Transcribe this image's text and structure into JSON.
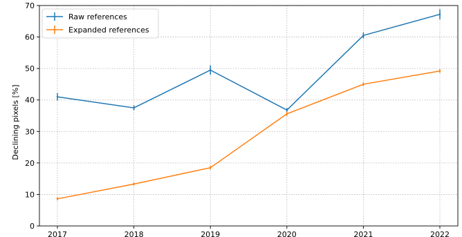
{
  "chart_data": {
    "type": "line",
    "title": "",
    "xlabel": "",
    "ylabel": "Declining pixels [%]",
    "categories": [
      "2017",
      "2018",
      "2019",
      "2020",
      "2021",
      "2022"
    ],
    "ylim": [
      0,
      70
    ],
    "yticks": [
      "0",
      "10",
      "20",
      "30",
      "40",
      "50",
      "60",
      "70"
    ],
    "grid": true,
    "legend_position": "top-left",
    "series": [
      {
        "name": "Raw references",
        "color": "#1f77b4",
        "values": [
          41,
          37.5,
          49.5,
          36.8,
          60.5,
          67.2
        ],
        "errors": [
          1.2,
          0.8,
          1.5,
          0.6,
          1.0,
          1.6
        ]
      },
      {
        "name": "Expanded references",
        "color": "#ff7f0e",
        "values": [
          8.6,
          13.3,
          18.5,
          35.6,
          45.0,
          49.2
        ],
        "errors": [
          0.5,
          0.5,
          0.6,
          0.7,
          0.6,
          0.6
        ]
      }
    ]
  }
}
